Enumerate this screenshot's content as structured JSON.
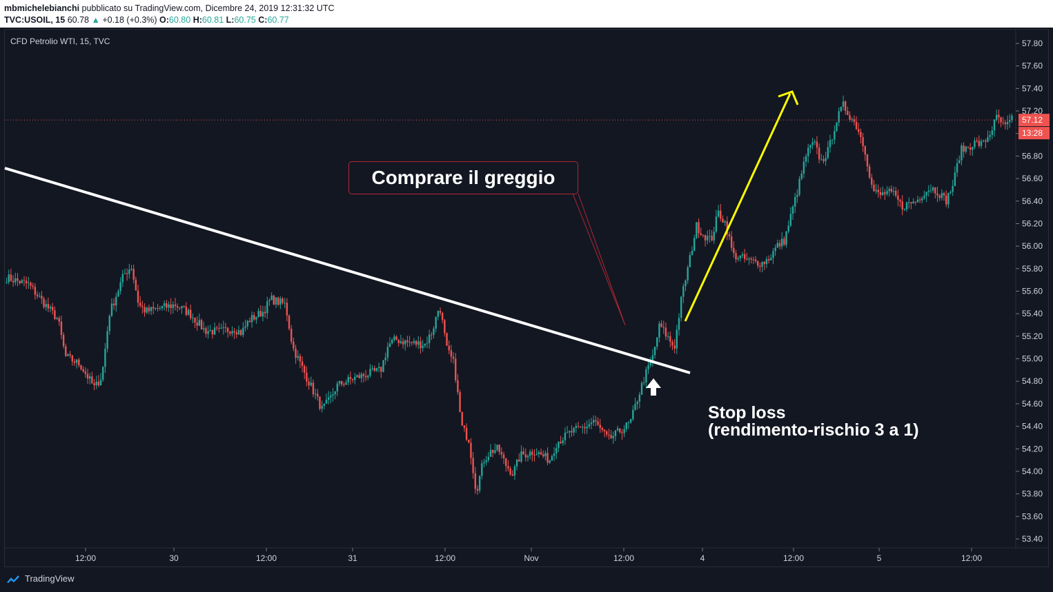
{
  "header": {
    "author": "mbmichelebianchi",
    "published": "pubblicato su TradingView.com, Dicembre 24, 2019 12:31:32 UTC",
    "symbol": "TVC:USOIL, 15",
    "last": "60.78",
    "change": "+0.18 (+0.3%)",
    "o_label": "O:",
    "o_value": "60.80",
    "h_label": "H:",
    "h_value": "60.81",
    "l_label": "L:",
    "l_value": "60.75",
    "c_label": "C:",
    "c_value": "60.77"
  },
  "chart_title": "CFD Petrolio WTI, 15, TVC",
  "annotations": {
    "buy_label": "Comprare il greggio",
    "stop_line1": "Stop loss",
    "stop_line2": "(rendimento-rischio 3 a 1)"
  },
  "price_badge": {
    "value": "57.12",
    "countdown": "13:28",
    "color": "#ef5350"
  },
  "footer": {
    "brand": "TradingView"
  },
  "colors": {
    "up": "#26a69a",
    "down": "#ef5350",
    "background": "#131722",
    "trendline": "#ffffff",
    "target_arrow": "#ffff00"
  },
  "chart_data": {
    "type": "candlestick",
    "title": "CFD Petrolio WTI, 15, TVC",
    "ylim": [
      53.3,
      57.9
    ],
    "y_ticks": [
      "57.80",
      "57.60",
      "57.40",
      "57.20",
      "57.00",
      "56.80",
      "56.60",
      "56.40",
      "56.20",
      "56.00",
      "55.80",
      "55.60",
      "55.40",
      "55.20",
      "55.00",
      "54.80",
      "54.60",
      "54.40",
      "54.20",
      "54.00",
      "53.80",
      "53.60",
      "53.40"
    ],
    "x_ticks": [
      "12:00",
      "30",
      "12:00",
      "31",
      "12:00",
      "Nov",
      "12:00",
      "4",
      "12:00",
      "5",
      "12:00"
    ],
    "close_path": [
      [
        0,
        55.72
      ],
      [
        3,
        55.66
      ],
      [
        5,
        55.5
      ],
      [
        7,
        55.35
      ],
      [
        8,
        55.02
      ],
      [
        10,
        54.95
      ],
      [
        12,
        54.74
      ],
      [
        13,
        54.85
      ],
      [
        14,
        55.4
      ],
      [
        16,
        55.75
      ],
      [
        17,
        55.82
      ],
      [
        18,
        55.48
      ],
      [
        19,
        55.42
      ],
      [
        21,
        55.45
      ],
      [
        23,
        55.48
      ],
      [
        25,
        55.4
      ],
      [
        27,
        55.25
      ],
      [
        29,
        55.24
      ],
      [
        31,
        55.27
      ],
      [
        32,
        55.23
      ],
      [
        33,
        55.34
      ],
      [
        35,
        55.42
      ],
      [
        36,
        55.53
      ],
      [
        38,
        55.48
      ],
      [
        39,
        55.1
      ],
      [
        41,
        54.82
      ],
      [
        43,
        54.55
      ],
      [
        44,
        54.63
      ],
      [
        45,
        54.76
      ],
      [
        47,
        54.82
      ],
      [
        49,
        54.86
      ],
      [
        51,
        54.9
      ],
      [
        52,
        55.12
      ],
      [
        53,
        55.17
      ],
      [
        55,
        55.14
      ],
      [
        57,
        55.13
      ],
      [
        58,
        55.24
      ],
      [
        59,
        55.48
      ],
      [
        60,
        55.08
      ],
      [
        61,
        54.95
      ],
      [
        62,
        54.4
      ],
      [
        63,
        54.28
      ],
      [
        64,
        53.82
      ],
      [
        65,
        54.1
      ],
      [
        66,
        54.18
      ],
      [
        67,
        54.2
      ],
      [
        68,
        54.06
      ],
      [
        69,
        53.98
      ],
      [
        70,
        54.14
      ],
      [
        72,
        54.18
      ],
      [
        74,
        54.1
      ],
      [
        75,
        54.26
      ],
      [
        77,
        54.35
      ],
      [
        79,
        54.4
      ],
      [
        80,
        54.45
      ],
      [
        82,
        54.28
      ],
      [
        84,
        54.38
      ],
      [
        85,
        54.43
      ],
      [
        86,
        54.65
      ],
      [
        87,
        54.85
      ],
      [
        88,
        55.0
      ],
      [
        89,
        55.3
      ],
      [
        90,
        55.2
      ],
      [
        91,
        55.1
      ],
      [
        92,
        55.55
      ],
      [
        93,
        55.85
      ],
      [
        94,
        56.18
      ],
      [
        95,
        56.1
      ],
      [
        96,
        56.05
      ],
      [
        97,
        56.3
      ],
      [
        98,
        56.2
      ],
      [
        99,
        55.92
      ],
      [
        100,
        55.9
      ],
      [
        101,
        55.87
      ],
      [
        103,
        55.85
      ],
      [
        104,
        55.9
      ],
      [
        105,
        56.0
      ],
      [
        106,
        56.05
      ],
      [
        107,
        56.3
      ],
      [
        108,
        56.55
      ],
      [
        109,
        56.82
      ],
      [
        110,
        56.92
      ],
      [
        111,
        56.75
      ],
      [
        112,
        56.85
      ],
      [
        113,
        57.1
      ],
      [
        114,
        57.25
      ],
      [
        115,
        57.15
      ],
      [
        116,
        57.05
      ],
      [
        117,
        56.85
      ],
      [
        118,
        56.5
      ],
      [
        119,
        56.45
      ],
      [
        120,
        56.48
      ],
      [
        121,
        56.45
      ],
      [
        122,
        56.35
      ],
      [
        123,
        56.38
      ],
      [
        124,
        56.4
      ],
      [
        125,
        56.48
      ],
      [
        126,
        56.52
      ],
      [
        127,
        56.48
      ],
      [
        128,
        56.4
      ],
      [
        129,
        56.55
      ],
      [
        130,
        56.85
      ],
      [
        131,
        56.88
      ],
      [
        132,
        56.92
      ],
      [
        133,
        56.9
      ],
      [
        134,
        57.0
      ],
      [
        135,
        57.15
      ],
      [
        136,
        57.05
      ],
      [
        137,
        57.12
      ]
    ],
    "last_price": 57.12
  }
}
